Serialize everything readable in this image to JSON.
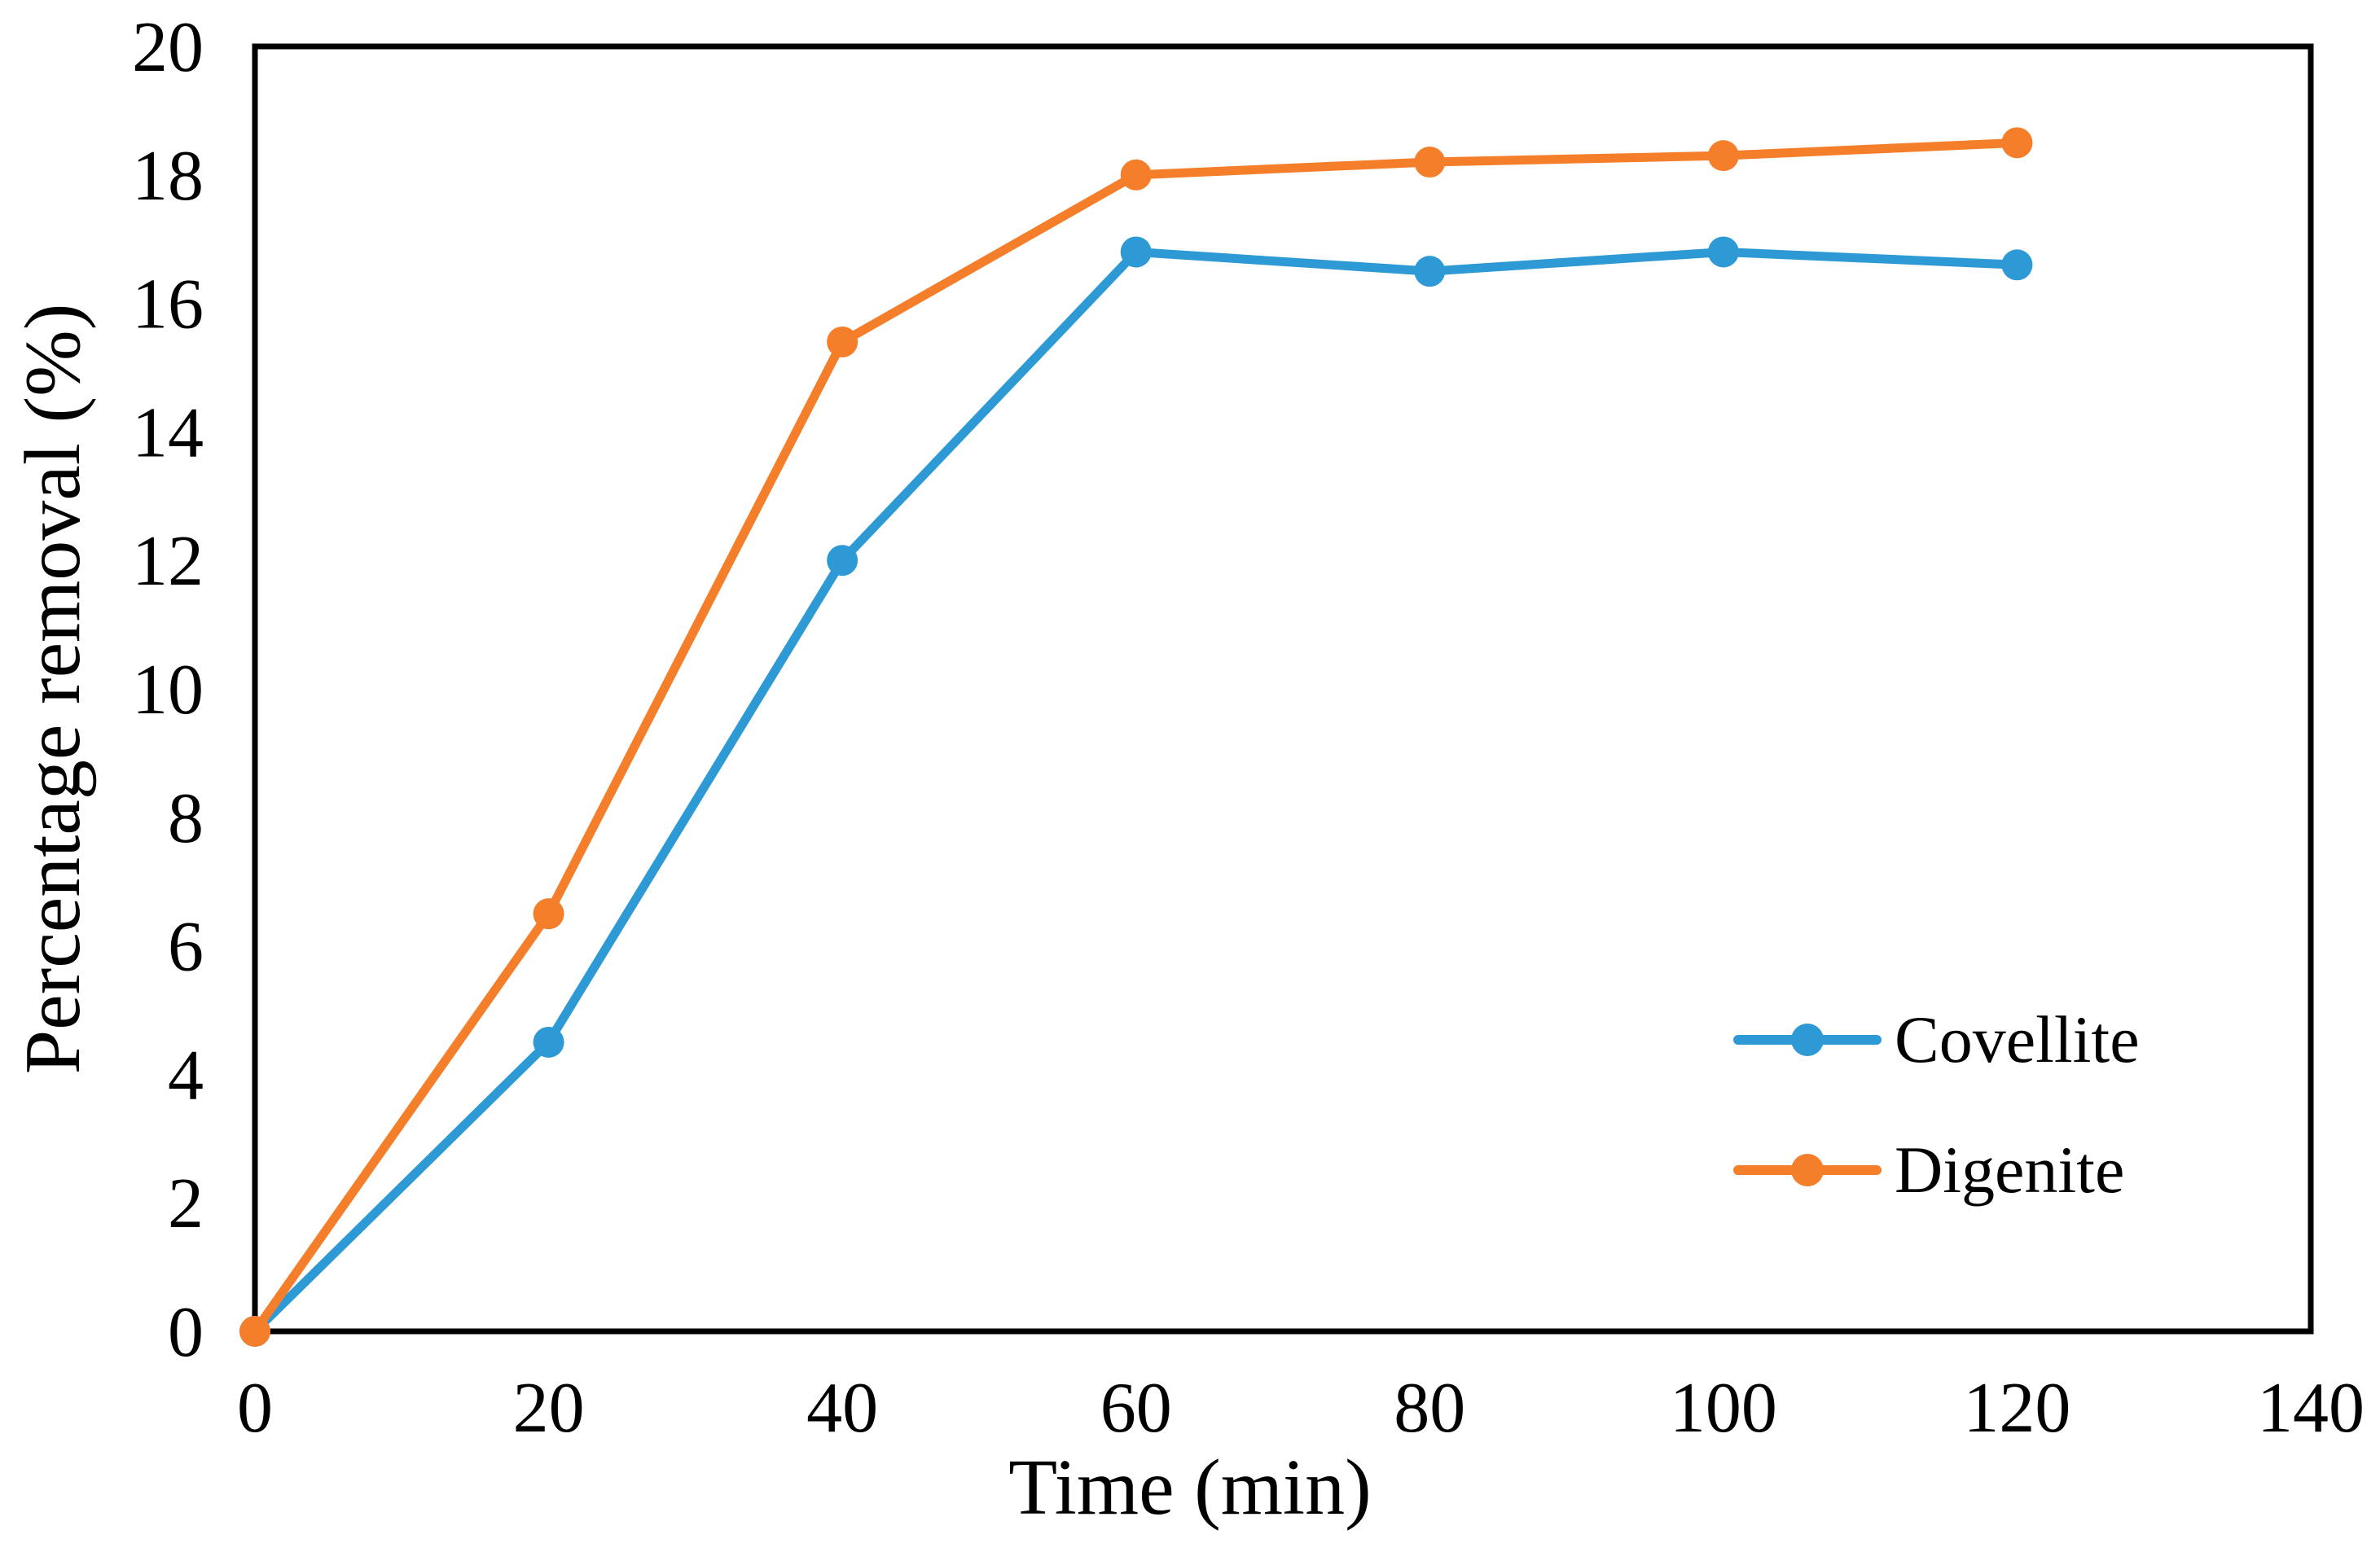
{
  "chart_data": {
    "type": "line",
    "title": "",
    "xlabel": "Time (min)",
    "ylabel": "Percentage removal (%)",
    "x": [
      0,
      20,
      40,
      60,
      80,
      100,
      120
    ],
    "series": [
      {
        "name": "Covellite",
        "color": "#2D9AD5",
        "values": [
          0,
          4.5,
          12.0,
          16.8,
          16.5,
          16.8,
          16.6
        ]
      },
      {
        "name": "Digenite",
        "color": "#F57E2A",
        "values": [
          0,
          6.5,
          15.4,
          18.0,
          18.2,
          18.3,
          18.5
        ]
      }
    ],
    "xlim": [
      0,
      140
    ],
    "ylim": [
      0,
      20
    ],
    "xticks": [
      0,
      20,
      40,
      60,
      80,
      100,
      120,
      140
    ],
    "yticks": [
      0,
      2,
      4,
      6,
      8,
      10,
      12,
      14,
      16,
      18,
      20
    ],
    "grid": false,
    "legend_position": "inside-right-middle",
    "marker": "circle",
    "frame": true,
    "axis_color": "#000000",
    "background_color": "#FFFFFF"
  }
}
